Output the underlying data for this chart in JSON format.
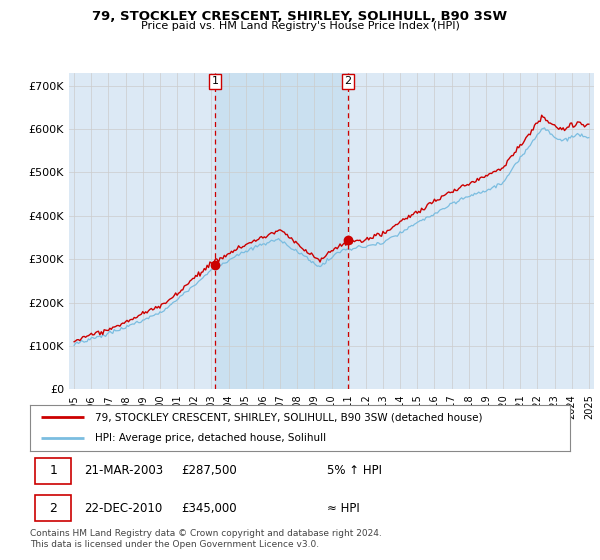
{
  "title": "79, STOCKLEY CRESCENT, SHIRLEY, SOLIHULL, B90 3SW",
  "subtitle": "Price paid vs. HM Land Registry's House Price Index (HPI)",
  "ylabel_ticks": [
    "£0",
    "£100K",
    "£200K",
    "£300K",
    "£400K",
    "£500K",
    "£600K",
    "£700K"
  ],
  "ytick_values": [
    0,
    100000,
    200000,
    300000,
    400000,
    500000,
    600000,
    700000
  ],
  "ylim": [
    0,
    730000
  ],
  "background_color": "#dce9f5",
  "shade_color": "#c8dff0",
  "hpi_color": "#7bbde0",
  "price_color": "#cc0000",
  "vline_color": "#cc0000",
  "marker1_x": 2003.22,
  "marker1_y": 287500,
  "marker1_label": "1",
  "marker2_x": 2010.97,
  "marker2_y": 345000,
  "marker2_label": "2",
  "legend_label_red": "79, STOCKLEY CRESCENT, SHIRLEY, SOLIHULL, B90 3SW (detached house)",
  "legend_label_blue": "HPI: Average price, detached house, Solihull",
  "table_row1": [
    "1",
    "21-MAR-2003",
    "£287,500",
    "5% ↑ HPI"
  ],
  "table_row2": [
    "2",
    "22-DEC-2010",
    "£345,000",
    "≈ HPI"
  ],
  "footer": "Contains HM Land Registry data © Crown copyright and database right 2024.\nThis data is licensed under the Open Government Licence v3.0.",
  "xtick_years": [
    1995,
    1996,
    1997,
    1998,
    1999,
    2000,
    2001,
    2002,
    2003,
    2004,
    2005,
    2006,
    2007,
    2008,
    2009,
    2010,
    2011,
    2012,
    2013,
    2014,
    2015,
    2016,
    2017,
    2018,
    2019,
    2020,
    2021,
    2022,
    2023,
    2024,
    2025
  ]
}
